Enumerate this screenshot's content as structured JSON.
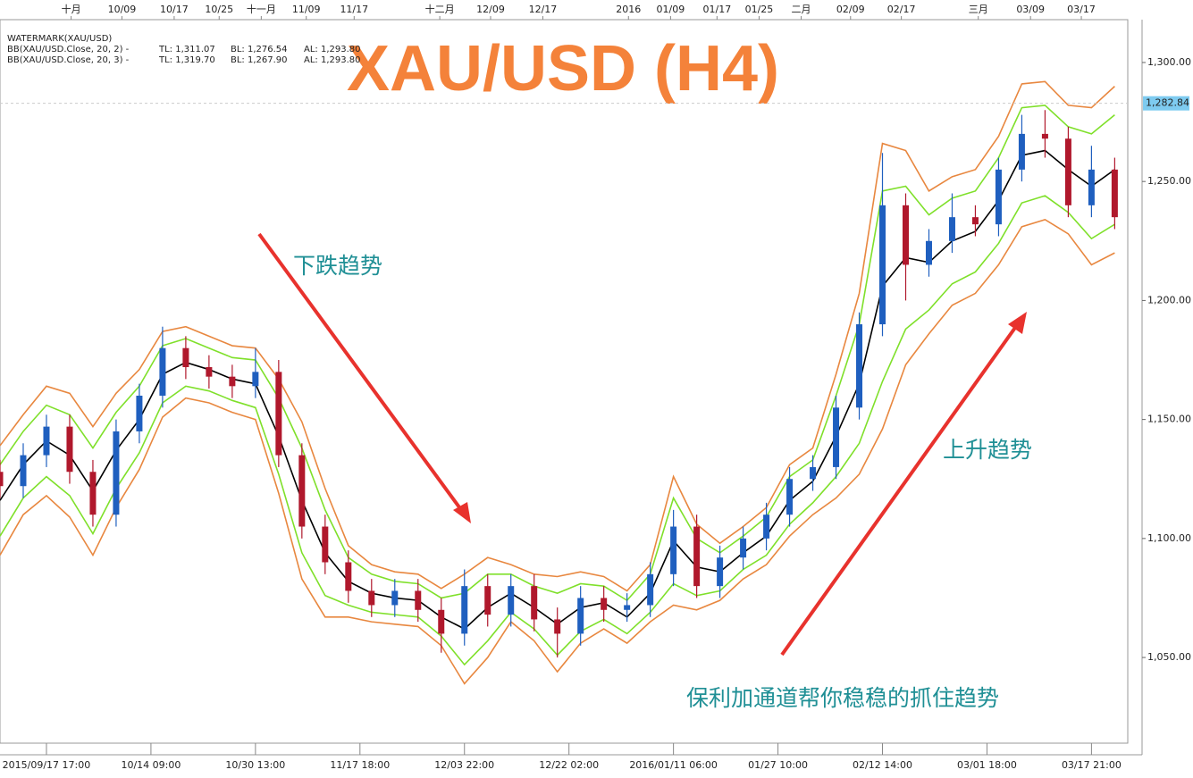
{
  "chart_data": {
    "type": "candlestick",
    "title": "XAU/USD (H4)",
    "x": [
      0,
      16,
      32,
      48,
      64,
      80,
      96,
      112,
      128,
      144,
      160,
      176,
      192,
      208,
      224,
      240,
      256,
      272,
      288,
      304,
      320,
      336,
      352,
      368,
      384,
      400,
      416,
      432,
      448,
      464,
      480,
      496,
      512,
      528,
      544,
      560,
      576,
      592,
      608,
      624,
      640,
      656,
      672,
      688,
      704,
      720,
      736,
      752,
      768
    ],
    "xlim": [
      0,
      777
    ],
    "ylim": [
      1014,
      1318
    ],
    "xticks": [
      {
        "value": 32,
        "label": "2015/09/17 17:00"
      },
      {
        "value": 104,
        "label": "10/14 09:00"
      },
      {
        "value": 176,
        "label": "10/30 13:00"
      },
      {
        "value": 248,
        "label": "11/17 18:00"
      },
      {
        "value": 320,
        "label": "12/03 22:00"
      },
      {
        "value": 392,
        "label": "12/22 02:00"
      },
      {
        "value": 464,
        "label": "2016/01/11 06:00"
      },
      {
        "value": 536,
        "label": "01/27 10:00"
      },
      {
        "value": 608,
        "label": "02/12 14:00"
      },
      {
        "value": 680,
        "label": "03/01 18:00"
      },
      {
        "value": 752,
        "label": "03/17 21:00"
      }
    ],
    "xticks_top": [
      {
        "value": 49,
        "label": "十月"
      },
      {
        "value": 84,
        "label": "10/09"
      },
      {
        "value": 120,
        "label": "10/17"
      },
      {
        "value": 151,
        "label": "10/25"
      },
      {
        "value": 180,
        "label": "十一月"
      },
      {
        "value": 211,
        "label": "11/09"
      },
      {
        "value": 244,
        "label": "11/17"
      },
      {
        "value": 303,
        "label": "十二月"
      },
      {
        "value": 338,
        "label": "12/09"
      },
      {
        "value": 374,
        "label": "12/17"
      },
      {
        "value": 433,
        "label": "2016"
      },
      {
        "value": 462,
        "label": "01/09"
      },
      {
        "value": 494,
        "label": "01/17"
      },
      {
        "value": 523,
        "label": "01/25"
      },
      {
        "value": 552,
        "label": "二月"
      },
      {
        "value": 586,
        "label": "02/09"
      },
      {
        "value": 621,
        "label": "02/17"
      },
      {
        "value": 674,
        "label": "三月"
      },
      {
        "value": 710,
        "label": "03/09"
      },
      {
        "value": 745,
        "label": "03/17"
      }
    ],
    "yticks": [
      {
        "value": 1050,
        "label": "1,050.00"
      },
      {
        "value": 1100,
        "label": "1,100.00"
      },
      {
        "value": 1150,
        "label": "1,150.00"
      },
      {
        "value": 1200,
        "label": "1,200.00"
      },
      {
        "value": 1250,
        "label": "1,250.00"
      },
      {
        "value": 1300,
        "label": "1,300.00"
      }
    ],
    "candles": {
      "up_color": "#1f5fbf",
      "down_color": "#b0182c",
      "open": [
        1128,
        1122,
        1135,
        1147,
        1128,
        1110,
        1145,
        1160,
        1180,
        1172,
        1168,
        1164,
        1170,
        1135,
        1105,
        1090,
        1078,
        1072,
        1078,
        1070,
        1060,
        1080,
        1068,
        1080,
        1066,
        1060,
        1075,
        1070,
        1072,
        1085,
        1105,
        1080,
        1092,
        1100,
        1110,
        1125,
        1130,
        1155,
        1190,
        1240,
        1215,
        1225,
        1235,
        1232,
        1255,
        1270,
        1268,
        1240,
        1255
      ],
      "high": [
        1133,
        1140,
        1152,
        1152,
        1133,
        1150,
        1165,
        1189,
        1185,
        1177,
        1173,
        1180,
        1175,
        1140,
        1110,
        1095,
        1083,
        1083,
        1083,
        1075,
        1087,
        1085,
        1085,
        1085,
        1071,
        1080,
        1080,
        1077,
        1090,
        1112,
        1110,
        1097,
        1105,
        1115,
        1130,
        1135,
        1160,
        1195,
        1262,
        1245,
        1230,
        1245,
        1240,
        1260,
        1278,
        1280,
        1273,
        1265,
        1260
      ],
      "low": [
        1117,
        1117,
        1130,
        1123,
        1105,
        1105,
        1140,
        1155,
        1167,
        1163,
        1159,
        1159,
        1130,
        1100,
        1085,
        1073,
        1067,
        1067,
        1065,
        1052,
        1055,
        1063,
        1063,
        1061,
        1050,
        1055,
        1065,
        1065,
        1067,
        1080,
        1075,
        1075,
        1087,
        1095,
        1105,
        1120,
        1125,
        1150,
        1185,
        1200,
        1210,
        1220,
        1227,
        1227,
        1250,
        1260,
        1235,
        1235,
        1230
      ],
      "close": [
        1122,
        1135,
        1147,
        1128,
        1110,
        1145,
        1160,
        1180,
        1172,
        1168,
        1164,
        1170,
        1135,
        1105,
        1090,
        1078,
        1072,
        1078,
        1070,
        1060,
        1080,
        1068,
        1080,
        1066,
        1060,
        1075,
        1070,
        1072,
        1085,
        1105,
        1080,
        1092,
        1100,
        1110,
        1125,
        1130,
        1155,
        1190,
        1240,
        1215,
        1225,
        1235,
        1232,
        1255,
        1270,
        1268,
        1240,
        1255,
        1235
      ]
    },
    "series": [
      {
        "color": "#000000",
        "values": [
          1116,
          1131,
          1141,
          1135,
          1120,
          1137,
          1150,
          1169,
          1174,
          1171,
          1167,
          1165,
          1143,
          1116,
          1094,
          1082,
          1077,
          1075,
          1074,
          1067,
          1062,
          1071,
          1077,
          1071,
          1064,
          1071,
          1073,
          1067,
          1077,
          1099,
          1088,
          1086,
          1094,
          1101,
          1116,
          1124,
          1143,
          1165,
          1206,
          1218,
          1216,
          1225,
          1229,
          1242,
          1261,
          1263,
          1255,
          1248,
          1255
        ]
      },
      {
        "color": "#7fe02a",
        "values": [
          1131,
          1145,
          1156,
          1152,
          1138,
          1153,
          1164,
          1181,
          1184,
          1180,
          1176,
          1175,
          1159,
          1138,
          1112,
          1092,
          1085,
          1082,
          1081,
          1075,
          1077,
          1085,
          1085,
          1080,
          1077,
          1081,
          1080,
          1074,
          1085,
          1117,
          1100,
          1094,
          1101,
          1109,
          1126,
          1133,
          1160,
          1190,
          1246,
          1248,
          1236,
          1243,
          1246,
          1260,
          1281,
          1282,
          1273,
          1270,
          1278
        ]
      },
      {
        "color": "#7fe02a",
        "values": [
          1101,
          1117,
          1126,
          1118,
          1102,
          1121,
          1136,
          1157,
          1164,
          1162,
          1158,
          1155,
          1127,
          1094,
          1076,
          1072,
          1069,
          1068,
          1067,
          1059,
          1047,
          1057,
          1069,
          1062,
          1051,
          1061,
          1066,
          1060,
          1069,
          1081,
          1076,
          1078,
          1087,
          1093,
          1106,
          1115,
          1126,
          1140,
          1166,
          1188,
          1196,
          1207,
          1212,
          1224,
          1241,
          1244,
          1237,
          1226,
          1232
        ]
      },
      {
        "color": "#e8873f",
        "values": [
          1139,
          1152,
          1164,
          1161,
          1147,
          1161,
          1171,
          1187,
          1189,
          1185,
          1181,
          1180,
          1167,
          1149,
          1121,
          1097,
          1089,
          1086,
          1085,
          1079,
          1085,
          1092,
          1089,
          1085,
          1084,
          1086,
          1084,
          1078,
          1089,
          1126,
          1106,
          1098,
          1105,
          1113,
          1131,
          1138,
          1169,
          1203,
          1266,
          1263,
          1246,
          1252,
          1255,
          1269,
          1291,
          1292,
          1282,
          1281,
          1290
        ]
      },
      {
        "color": "#e8873f",
        "values": [
          1093,
          1110,
          1118,
          1109,
          1093,
          1113,
          1129,
          1151,
          1159,
          1157,
          1153,
          1150,
          1119,
          1083,
          1067,
          1067,
          1065,
          1064,
          1063,
          1055,
          1039,
          1050,
          1065,
          1057,
          1044,
          1056,
          1062,
          1056,
          1065,
          1072,
          1070,
          1074,
          1083,
          1089,
          1101,
          1110,
          1117,
          1127,
          1146,
          1173,
          1186,
          1198,
          1203,
          1215,
          1231,
          1234,
          1228,
          1215,
          1220
        ]
      }
    ],
    "last_price": {
      "value": 1282.84,
      "label": "1,282.84"
    },
    "indicators": [
      {
        "label": "WATERMARK(XAU/USD)",
        "color": "#000000"
      },
      {
        "label": "BB(XAU/USD.Close, 20, 2) -",
        "tl": "TL: 1,311.07",
        "bl": "BL: 1,276.54",
        "al": "AL: 1,293.80",
        "color": "#7fe02a"
      },
      {
        "label": "BB(XAU/USD.Close, 20, 3) -",
        "tl": "TL: 1,319.70",
        "bl": "BL: 1,267.90",
        "al": "AL: 1,293.80",
        "color": "#e8873f"
      }
    ],
    "annotations": [
      "下跌趋势",
      "上升趋势",
      "保利加通道帮你稳稳的抓住趋势"
    ]
  }
}
